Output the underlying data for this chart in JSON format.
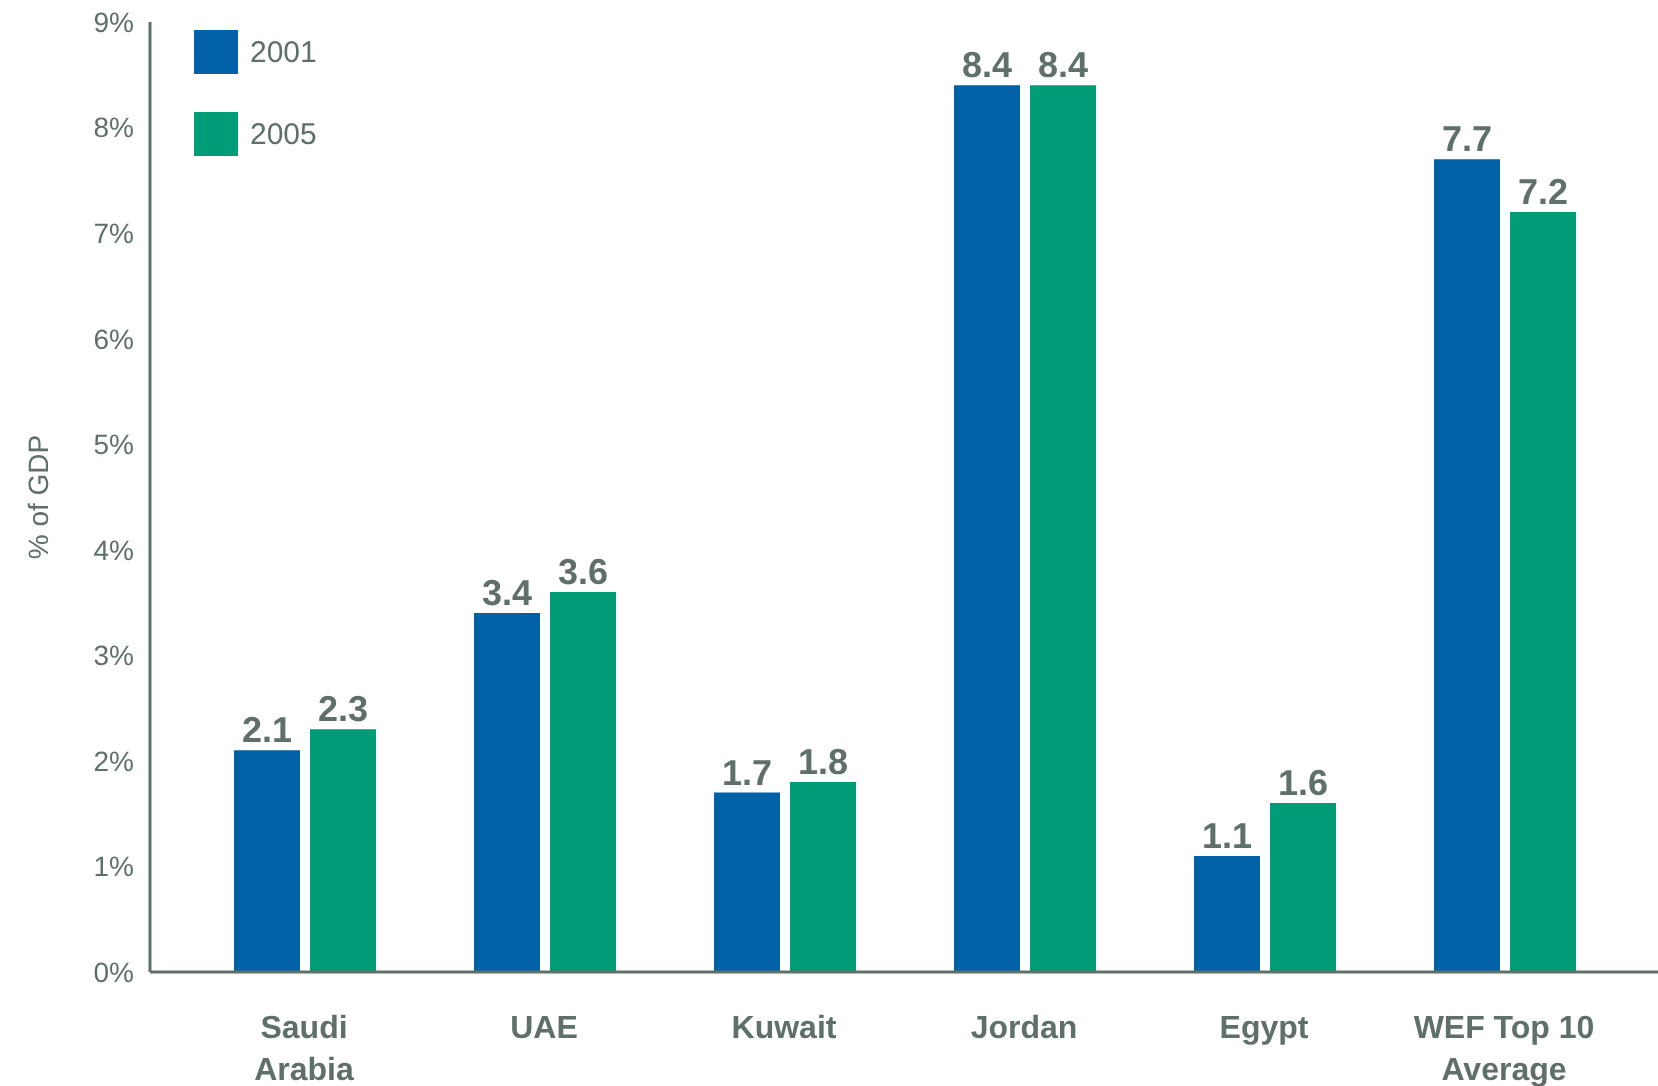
{
  "chart_data": {
    "type": "bar",
    "ylabel": "% of GDP",
    "categories": [
      "Saudi Arabia",
      "UAE",
      "Kuwait",
      "Jordan",
      "Egypt",
      "WEF Top 10 Average"
    ],
    "series": [
      {
        "name": "2001",
        "color": "#0061a6",
        "values": [
          2.1,
          3.4,
          1.7,
          8.4,
          1.1,
          7.7
        ]
      },
      {
        "name": "2005",
        "color": "#009b77",
        "values": [
          2.3,
          3.6,
          1.8,
          8.4,
          1.6,
          7.2
        ]
      }
    ],
    "ylim": [
      0,
      9
    ],
    "yticks": [
      {
        "value": 0,
        "label": "0%"
      },
      {
        "value": 1,
        "label": "1%"
      },
      {
        "value": 2,
        "label": "2%"
      },
      {
        "value": 3,
        "label": "3%"
      },
      {
        "value": 4,
        "label": "4%"
      },
      {
        "value": 5,
        "label": "5%"
      },
      {
        "value": 6,
        "label": "6%"
      },
      {
        "value": 7,
        "label": "7%"
      },
      {
        "value": 8,
        "label": "8%"
      },
      {
        "value": 9,
        "label": "9%"
      }
    ],
    "data_labels": true,
    "legend": "top left"
  }
}
